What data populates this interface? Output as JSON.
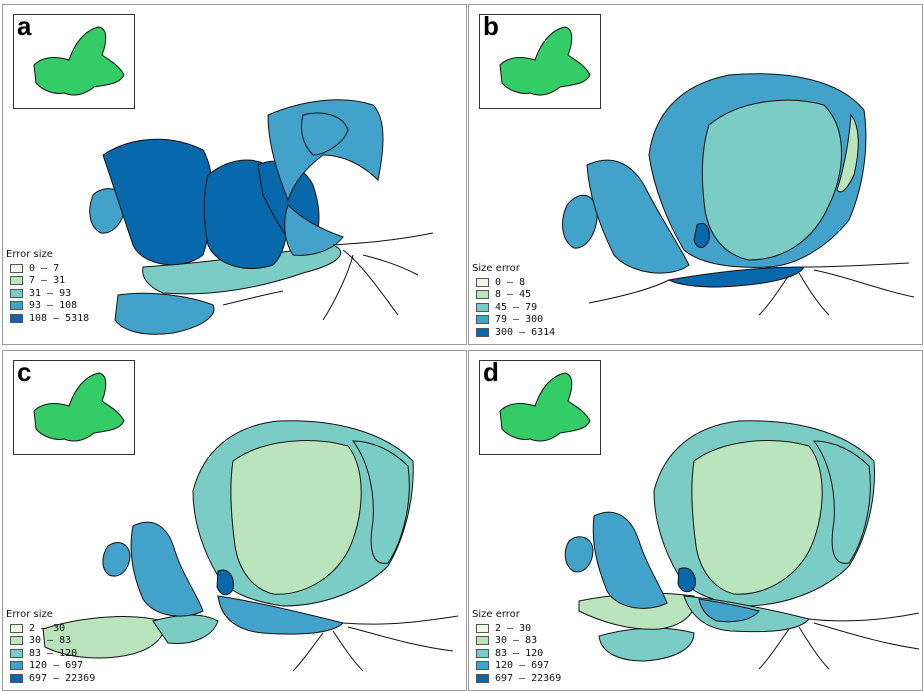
{
  "panels": [
    {
      "letter": "a",
      "legend_title": "Error size",
      "legend": [
        {
          "label": "0 – 7",
          "color": "#f0f9e8"
        },
        {
          "label": "7 – 31",
          "color": "#bae4bc"
        },
        {
          "label": "31 – 93",
          "color": "#7bccc4"
        },
        {
          "label": "93 – 108",
          "color": "#43a2ca"
        },
        {
          "label": "108 – 5318",
          "color": "#0868ac"
        }
      ]
    },
    {
      "letter": "b",
      "legend_title": "Size error",
      "legend": [
        {
          "label": "0 – 8",
          "color": "#f0f9e8"
        },
        {
          "label": "8 – 45",
          "color": "#bae4bc"
        },
        {
          "label": "45 – 79",
          "color": "#7bccc4"
        },
        {
          "label": "79 – 300",
          "color": "#43a2ca"
        },
        {
          "label": "300 – 6314",
          "color": "#0868ac"
        }
      ]
    },
    {
      "letter": "c",
      "legend_title": "Error size",
      "legend": [
        {
          "label": "2 – 30",
          "color": "#f0f9e8"
        },
        {
          "label": "30 – 83",
          "color": "#bae4bc"
        },
        {
          "label": "83 – 120",
          "color": "#7bccc4"
        },
        {
          "label": "120 – 697",
          "color": "#43a2ca"
        },
        {
          "label": "697 – 22369",
          "color": "#0868ac"
        }
      ]
    },
    {
      "letter": "d",
      "legend_title": "Size error",
      "legend": [
        {
          "label": "2 – 30",
          "color": "#f0f9e8"
        },
        {
          "label": "30 – 83",
          "color": "#bae4bc"
        },
        {
          "label": "83 – 120",
          "color": "#7bccc4"
        },
        {
          "label": "120 – 697",
          "color": "#43a2ca"
        },
        {
          "label": "697 – 22369",
          "color": "#0868ac"
        }
      ]
    }
  ],
  "inset_color": "#33cc66"
}
